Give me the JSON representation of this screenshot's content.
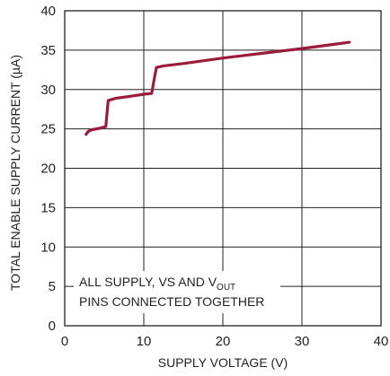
{
  "chart_data": {
    "type": "line",
    "title": "",
    "xlabel": "SUPPLY VOLTAGE (V)",
    "ylabel": "TOTAL ENABLE SUPPLY CURRENT (µA)",
    "xlim": [
      0,
      40
    ],
    "ylim": [
      0,
      40
    ],
    "x_ticks": [
      "0",
      "10",
      "20",
      "30",
      "40"
    ],
    "y_ticks": [
      "0",
      "5",
      "10",
      "15",
      "20",
      "25",
      "30",
      "35",
      "40"
    ],
    "grid": true,
    "line_color": "#9b1b3a",
    "annotation": {
      "line1_prefix": "ALL SUPPLY, VS AND V",
      "line1_subscript": "OUT",
      "line1_suffix": "",
      "line2": "PINS CONNECTED TOGETHER"
    },
    "series": [
      {
        "x": [
          2.7,
          3.0,
          3.5,
          4.5,
          5.2,
          5.35,
          5.5,
          6.5,
          8.0,
          10.0,
          11.0,
          11.35,
          11.6,
          12.5,
          15.0,
          20.0,
          25.0,
          30.0,
          33.0,
          36.0
        ],
        "y": [
          24.3,
          24.7,
          24.9,
          25.1,
          25.3,
          27.0,
          28.6,
          28.9,
          29.1,
          29.4,
          29.5,
          31.5,
          32.8,
          33.0,
          33.3,
          34.0,
          34.6,
          35.2,
          35.6,
          36.0
        ]
      }
    ]
  }
}
